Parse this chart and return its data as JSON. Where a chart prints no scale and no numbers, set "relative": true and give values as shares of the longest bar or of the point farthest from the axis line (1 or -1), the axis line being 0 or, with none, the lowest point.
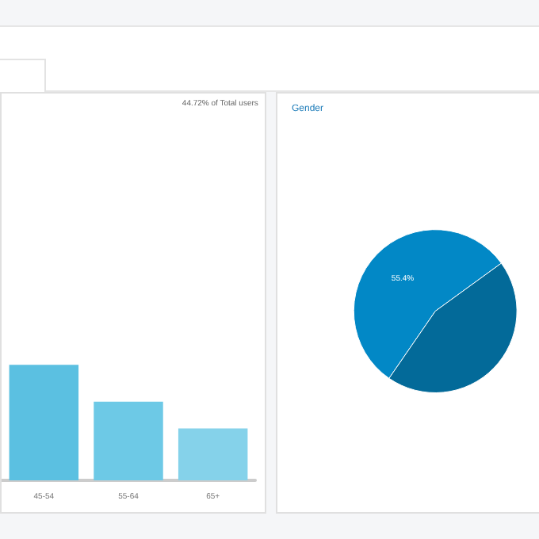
{
  "chart_data": [
    {
      "type": "bar",
      "relative": true,
      "categories": [
        "45-54",
        "55-64",
        "65+"
      ],
      "values": [
        1,
        0.68,
        0.45
      ],
      "colors": [
        "#5bc0e1",
        "#6dc9e6",
        "#85d2ea"
      ],
      "annotations": [
        "44.72% of Total users"
      ]
    },
    {
      "type": "pie",
      "title": "Gender",
      "categories": [
        null,
        null
      ],
      "values": [
        55.4,
        44.6
      ],
      "colors": [
        "#0288c6",
        "#036a99"
      ],
      "value_labels": [
        "55.4%",
        null
      ]
    }
  ]
}
